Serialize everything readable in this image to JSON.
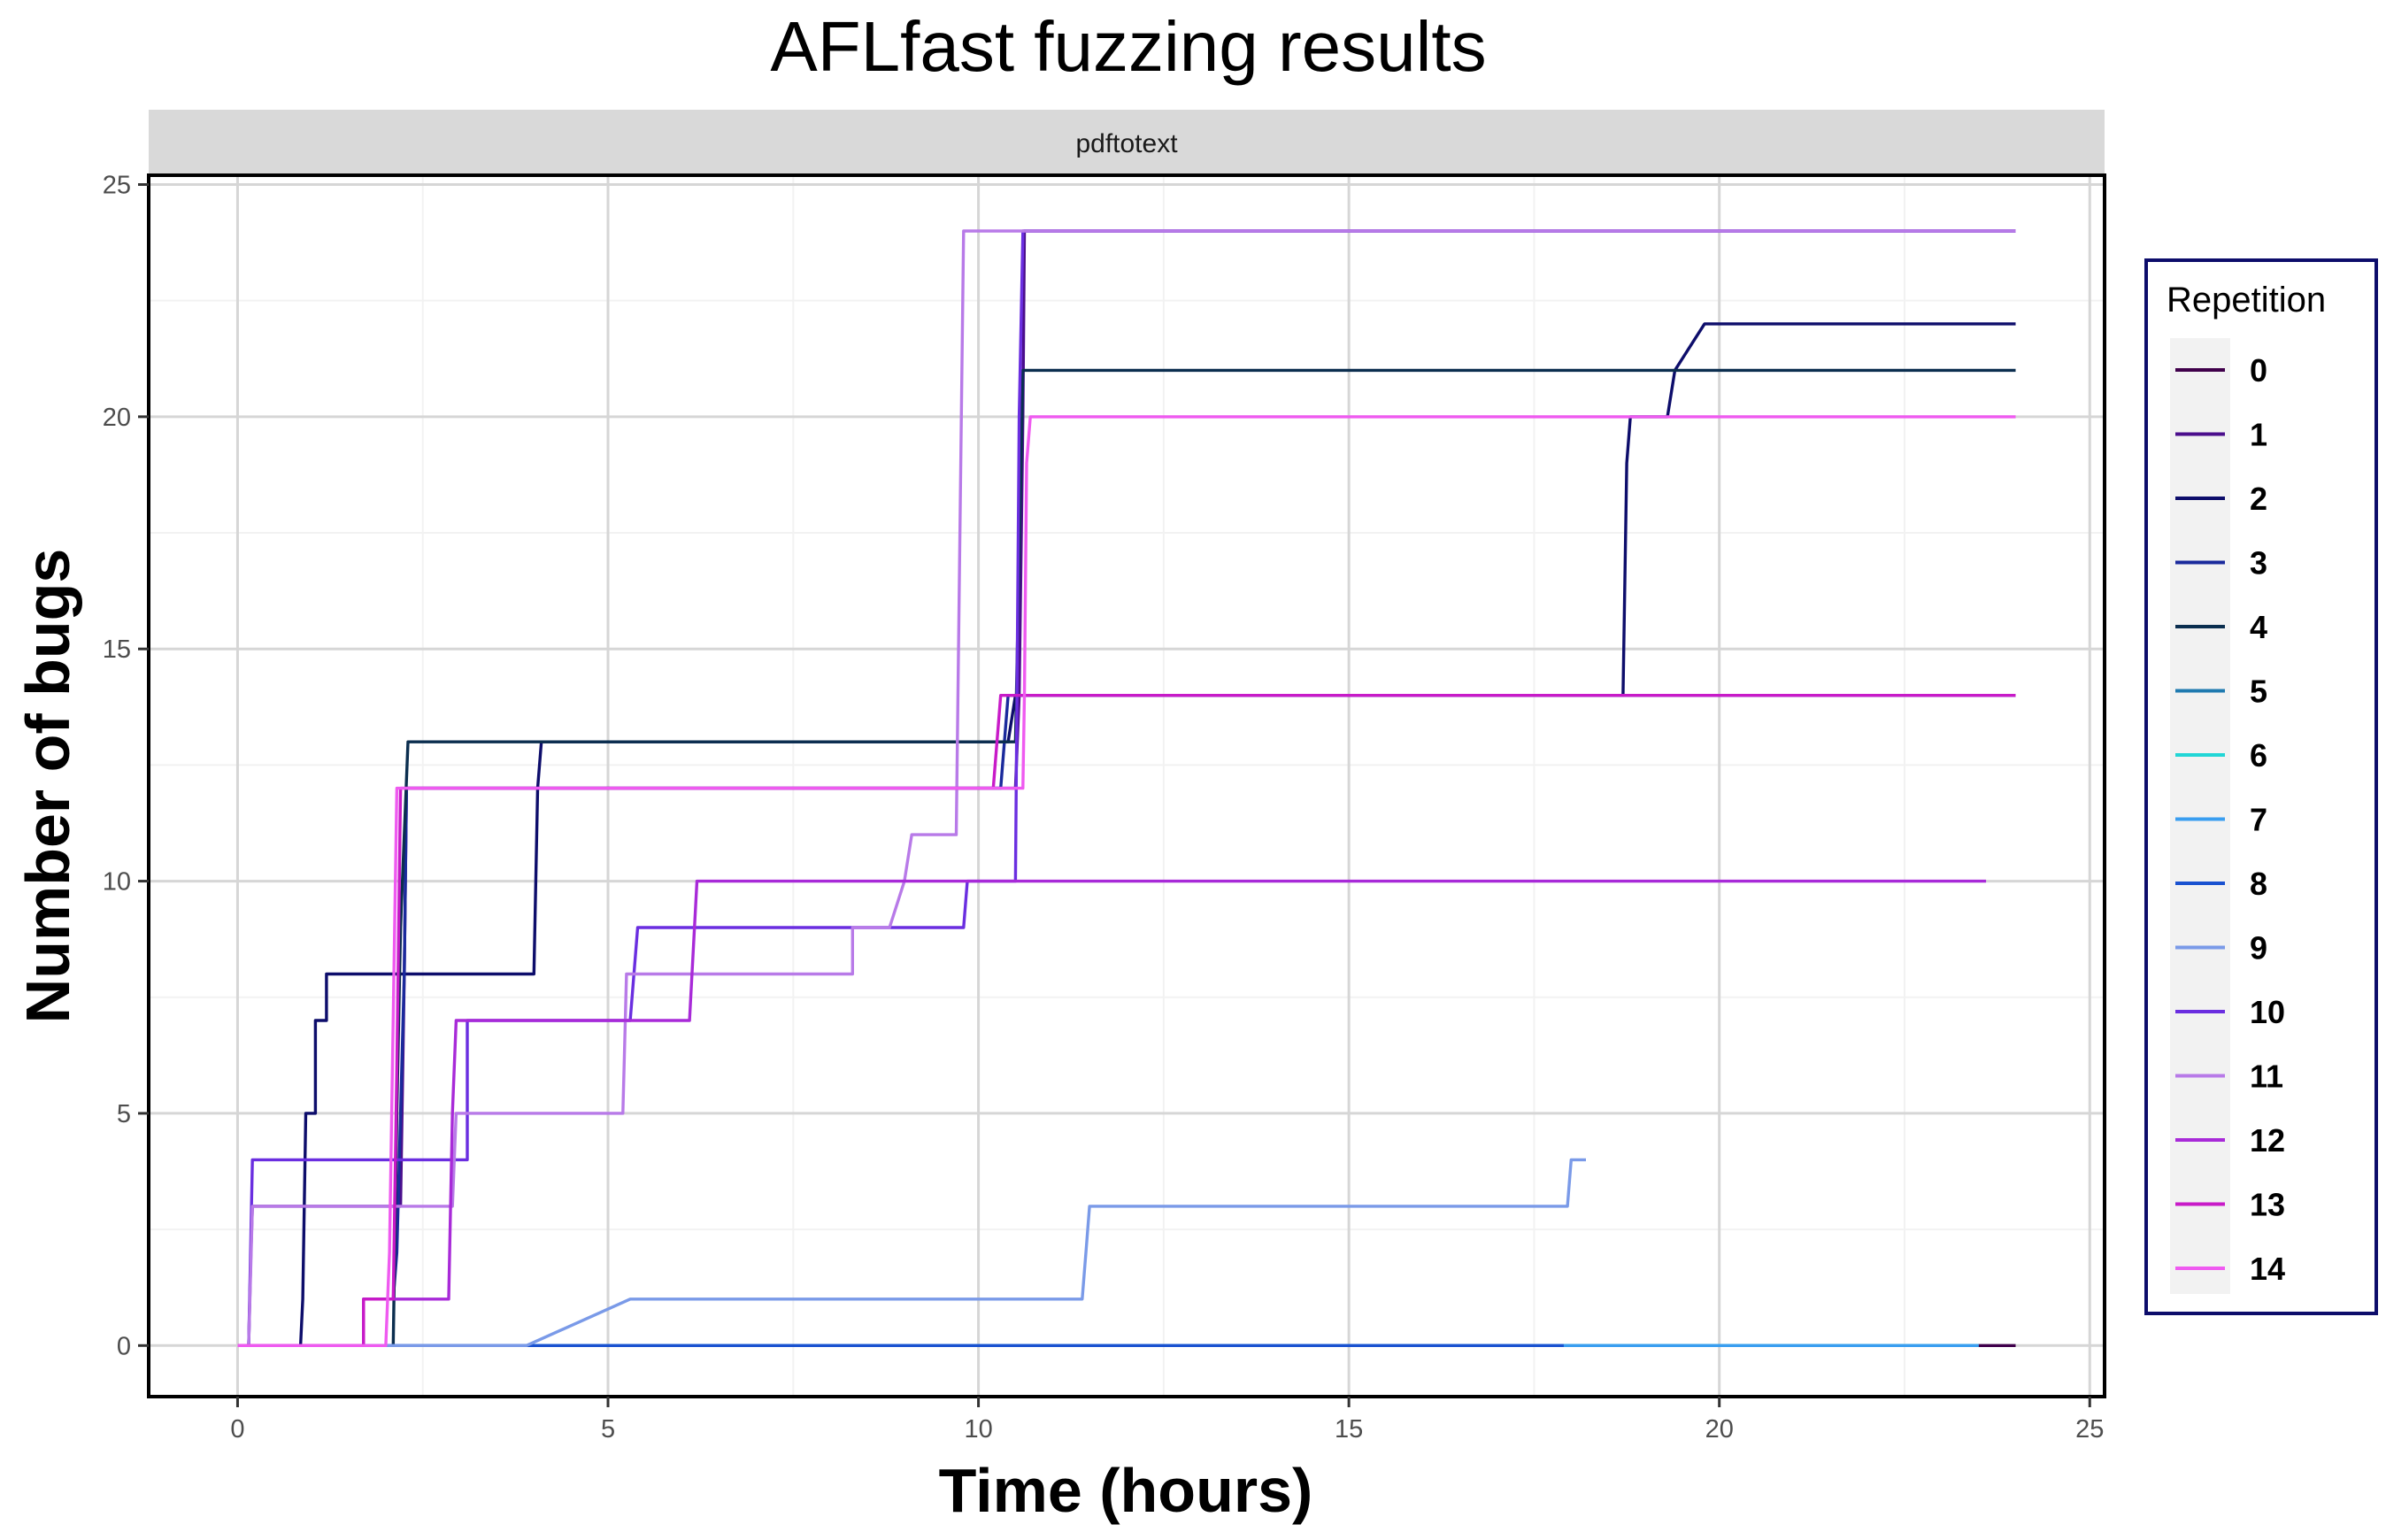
{
  "chart_data": {
    "type": "line",
    "title": "AFLfast fuzzing results",
    "facet": "pdftotext",
    "xlabel": "Time (hours)",
    "ylabel": "Number of bugs",
    "xlim": [
      -1.2,
      25.2
    ],
    "ylim": [
      -1.1,
      25.2
    ],
    "xticks": [
      0,
      5,
      10,
      15,
      20,
      25
    ],
    "yticks": [
      0,
      5,
      10,
      15,
      20,
      25
    ],
    "grid": true,
    "legend": {
      "title": "Repetition",
      "position": "right"
    },
    "series": [
      {
        "name": "0",
        "color": "#40004b",
        "points": [
          [
            0,
            0
          ],
          [
            23.5,
            0
          ],
          [
            24,
            0
          ]
        ]
      },
      {
        "name": "1",
        "color": "#4b0e8c",
        "points": [
          [
            0,
            0
          ],
          [
            0.15,
            0
          ],
          [
            0.18,
            2
          ],
          [
            0.2,
            3
          ],
          [
            2.2,
            3
          ],
          [
            2.25,
            8
          ],
          [
            2.28,
            12
          ],
          [
            10.5,
            12
          ],
          [
            10.55,
            14
          ],
          [
            10.6,
            20
          ],
          [
            10.62,
            24
          ],
          [
            24,
            24
          ]
        ]
      },
      {
        "name": "2",
        "color": "#0d0d6b",
        "points": [
          [
            0,
            0
          ],
          [
            0.85,
            0
          ],
          [
            0.88,
            1
          ],
          [
            0.92,
            5
          ],
          [
            1.05,
            5
          ],
          [
            1.05,
            7
          ],
          [
            1.2,
            7
          ],
          [
            1.2,
            8
          ],
          [
            4.0,
            8
          ],
          [
            4.05,
            12
          ],
          [
            4.1,
            13
          ],
          [
            10.4,
            13
          ],
          [
            10.5,
            14
          ],
          [
            18.7,
            14
          ],
          [
            18.75,
            19
          ],
          [
            18.8,
            20
          ],
          [
            19.3,
            20
          ],
          [
            19.4,
            21
          ],
          [
            19.8,
            22
          ],
          [
            24,
            22
          ]
        ]
      },
      {
        "name": "3",
        "color": "#1a2a9c",
        "points": [
          [
            0,
            0
          ],
          [
            1.7,
            0
          ],
          [
            1.7,
            1
          ],
          [
            2.1,
            1
          ],
          [
            2.15,
            2
          ],
          [
            2.2,
            5
          ],
          [
            2.25,
            8
          ],
          [
            2.28,
            12
          ],
          [
            10.3,
            12
          ],
          [
            10.35,
            13
          ],
          [
            10.4,
            14
          ],
          [
            12.0,
            14
          ],
          [
            24,
            14
          ]
        ]
      },
      {
        "name": "4",
        "color": "#0b2e4f",
        "points": [
          [
            0,
            0
          ],
          [
            2.1,
            0
          ],
          [
            2.15,
            5
          ],
          [
            2.2,
            9
          ],
          [
            2.3,
            13
          ],
          [
            10.5,
            13
          ],
          [
            10.55,
            17
          ],
          [
            10.6,
            21
          ],
          [
            24,
            21
          ]
        ]
      },
      {
        "name": "5",
        "color": "#1f7ab0",
        "points": [
          [
            0,
            0
          ],
          [
            23.5,
            0
          ]
        ]
      },
      {
        "name": "6",
        "color": "#22d6d6",
        "points": [
          [
            0,
            0
          ],
          [
            23.5,
            0
          ]
        ]
      },
      {
        "name": "7",
        "color": "#3a9ef0",
        "points": [
          [
            0,
            0
          ],
          [
            23.5,
            0
          ]
        ]
      },
      {
        "name": "8",
        "color": "#1a52d0",
        "points": [
          [
            0,
            0
          ],
          [
            17.9,
            0
          ]
        ]
      },
      {
        "name": "9",
        "color": "#7a9ae8",
        "points": [
          [
            0,
            0
          ],
          [
            3.9,
            0
          ],
          [
            5.3,
            1
          ],
          [
            11.4,
            1
          ],
          [
            11.45,
            2
          ],
          [
            11.5,
            3
          ],
          [
            17.95,
            3
          ],
          [
            18.0,
            4
          ],
          [
            18.2,
            4
          ]
        ]
      },
      {
        "name": "10",
        "color": "#6a2ee0",
        "points": [
          [
            0,
            0
          ],
          [
            0.15,
            0
          ],
          [
            0.2,
            4
          ],
          [
            3.1,
            4
          ],
          [
            3.1,
            7
          ],
          [
            5.3,
            7
          ],
          [
            5.4,
            9
          ],
          [
            9.8,
            9
          ],
          [
            9.85,
            10
          ],
          [
            10.5,
            10
          ],
          [
            10.55,
            20
          ],
          [
            10.6,
            24
          ],
          [
            24,
            24
          ]
        ]
      },
      {
        "name": "11",
        "color": "#b87ae8",
        "points": [
          [
            0,
            0
          ],
          [
            0.15,
            0
          ],
          [
            0.2,
            3
          ],
          [
            2.9,
            3
          ],
          [
            2.95,
            5
          ],
          [
            5.2,
            5
          ],
          [
            5.25,
            8
          ],
          [
            8.3,
            8
          ],
          [
            8.3,
            9
          ],
          [
            8.8,
            9
          ],
          [
            9.0,
            10
          ],
          [
            9.1,
            11
          ],
          [
            9.7,
            11
          ],
          [
            9.8,
            24
          ],
          [
            24,
            24
          ]
        ]
      },
      {
        "name": "12",
        "color": "#a82ad8",
        "points": [
          [
            0,
            0
          ],
          [
            1.7,
            0
          ],
          [
            1.7,
            1
          ],
          [
            2.85,
            1
          ],
          [
            2.9,
            5
          ],
          [
            2.95,
            7
          ],
          [
            6.1,
            7
          ],
          [
            6.2,
            10
          ],
          [
            23.6,
            10
          ]
        ]
      },
      {
        "name": "13",
        "color": "#c81ac8",
        "points": [
          [
            0,
            0
          ],
          [
            1.7,
            0
          ],
          [
            1.7,
            1
          ],
          [
            2.1,
            1
          ],
          [
            2.15,
            6
          ],
          [
            2.2,
            12
          ],
          [
            10.2,
            12
          ],
          [
            10.25,
            13
          ],
          [
            10.3,
            14
          ],
          [
            24,
            14
          ]
        ]
      },
      {
        "name": "14",
        "color": "#ef5af0",
        "points": [
          [
            0,
            0
          ],
          [
            2.0,
            0
          ],
          [
            2.05,
            2
          ],
          [
            2.15,
            12
          ],
          [
            10.6,
            12
          ],
          [
            10.62,
            14
          ],
          [
            10.65,
            19
          ],
          [
            10.7,
            20
          ],
          [
            24,
            20
          ]
        ]
      }
    ]
  }
}
